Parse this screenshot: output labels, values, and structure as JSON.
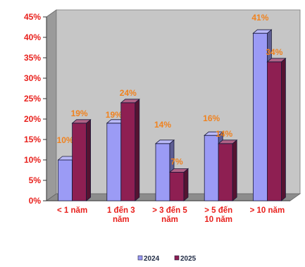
{
  "chart_data": {
    "type": "bar",
    "categories": [
      [
        "< 1 năm"
      ],
      [
        "1 đến 3",
        "năm"
      ],
      [
        "> 3 đến 5",
        "năm"
      ],
      [
        "> 5 đến",
        "10 năm"
      ],
      [
        "> 10 năm"
      ]
    ],
    "series": [
      {
        "name": "2024",
        "values": [
          10,
          19,
          14,
          16,
          41
        ],
        "labels": [
          "10%",
          "19%",
          "14%",
          "16%",
          "41%"
        ],
        "color": "#9b9bf5"
      },
      {
        "name": "2025",
        "values": [
          19,
          24,
          7,
          14,
          34
        ],
        "labels": [
          "19%",
          "24%",
          "7%",
          "14%",
          "34%"
        ],
        "color": "#8e1f52"
      }
    ],
    "ylim": [
      0,
      45
    ],
    "yticks": [
      "0%",
      "5%",
      "10%",
      "15%",
      "20%",
      "25%",
      "30%",
      "35%",
      "40%",
      "45%"
    ],
    "grid": false,
    "legend_position": "bottom-center",
    "colors": {
      "plot_wall": "#c6c6c6",
      "axis_text": "#e8201c",
      "data_label": "#f0821e"
    }
  }
}
